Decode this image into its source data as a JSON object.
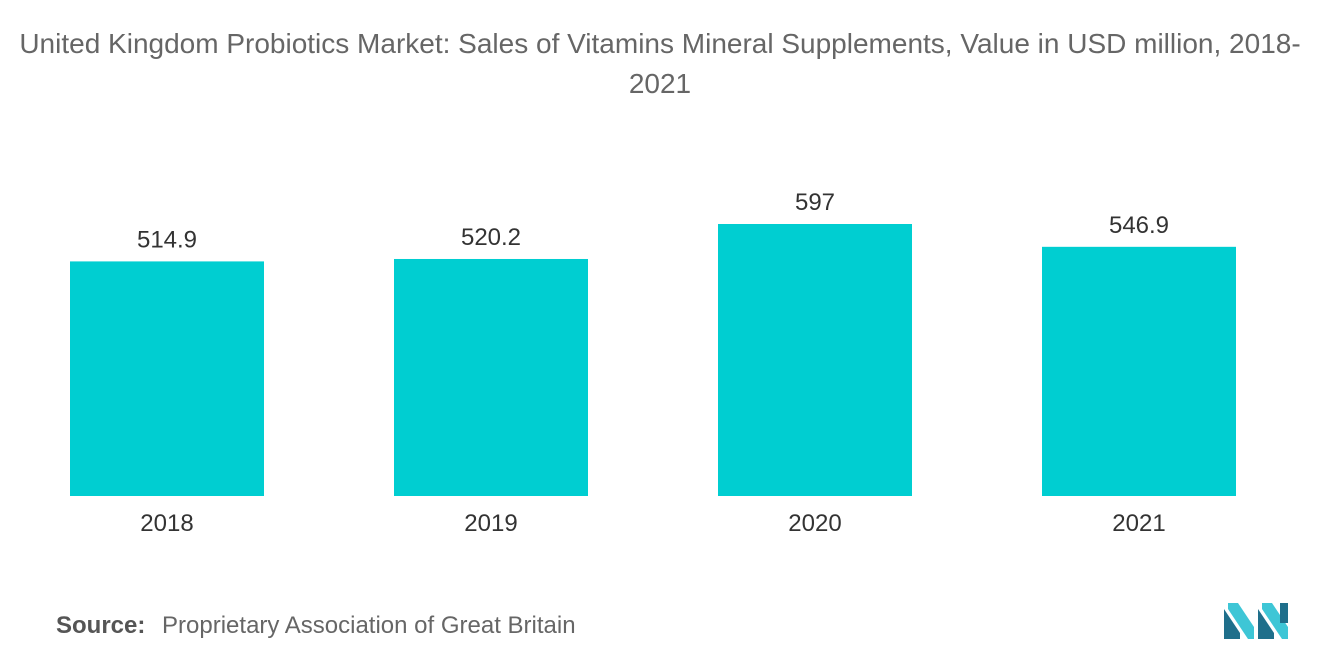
{
  "chart_data": {
    "type": "bar",
    "title": "United Kingdom Probiotics Market: Sales of Vitamins Mineral Supplements, Value in USD million, 2018-2021",
    "categories": [
      "2018",
      "2019",
      "2020",
      "2021"
    ],
    "values": [
      514.9,
      520.2,
      597,
      546.9
    ],
    "value_labels": [
      "514.9",
      "520.2",
      "597",
      "546.9"
    ],
    "xlabel": "",
    "ylabel": "",
    "ylim": [
      0,
      597
    ],
    "grid": false,
    "legend": "none",
    "bar_color": "#00CED1"
  },
  "footer": {
    "source_label": "Source:",
    "source_text": "Proprietary Association of Great Britain"
  },
  "logo": {
    "icon": "mordor-intelligence-logo-icon",
    "colors": [
      "#1f6f8b",
      "#3ec6d6"
    ]
  }
}
